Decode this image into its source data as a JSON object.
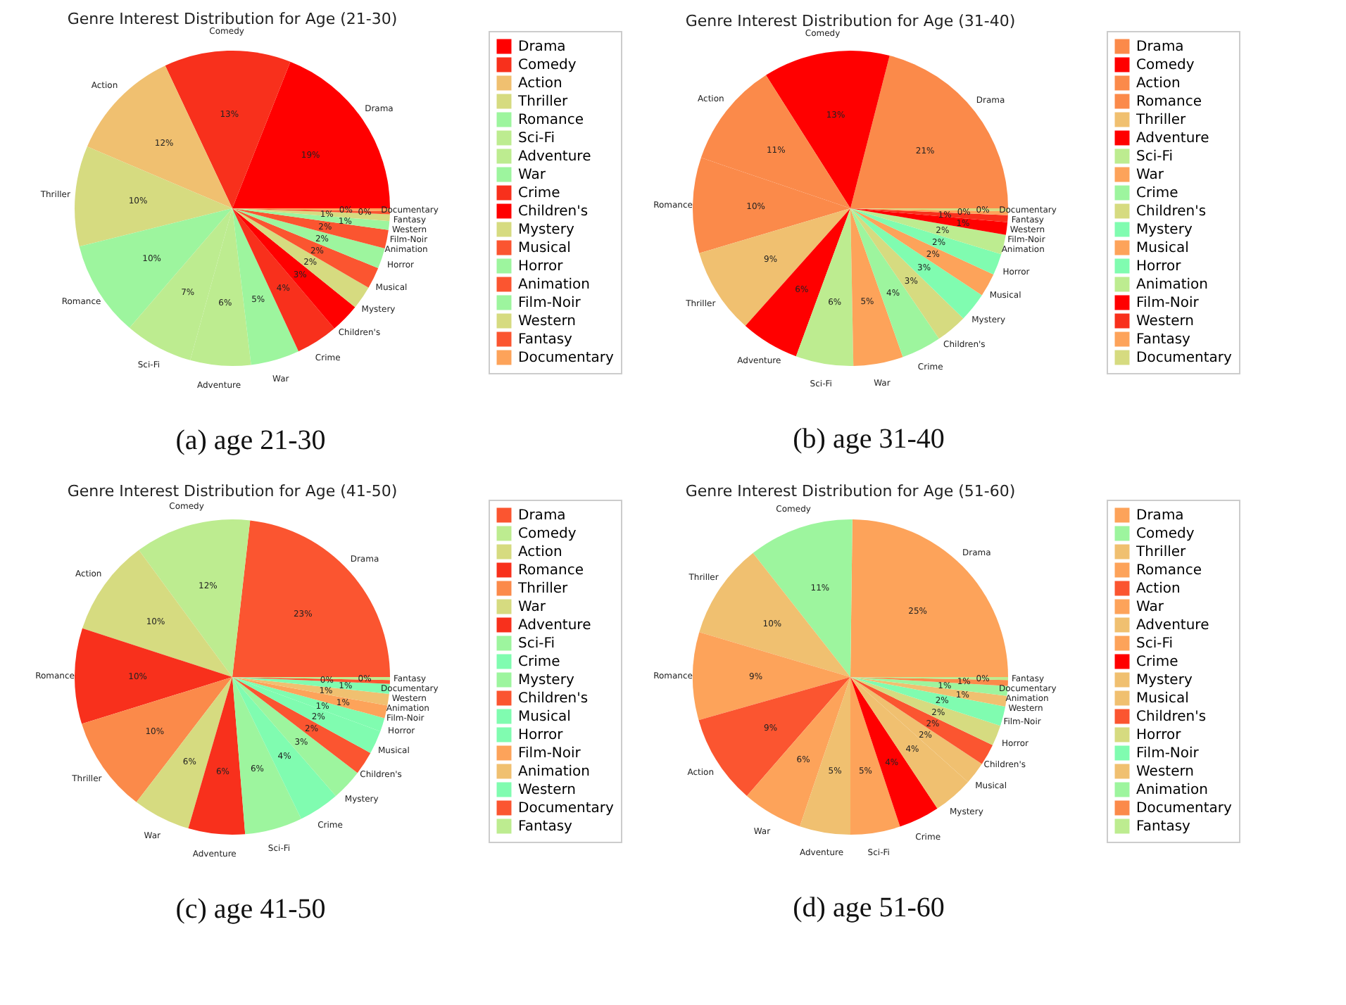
{
  "chart_data": [
    {
      "type": "pie",
      "title": "Genre Interest Distribution for Age (21-30)",
      "legend": "right",
      "annotations": [
        "(a) age 21-30"
      ],
      "categories": [
        "Drama",
        "Comedy",
        "Action",
        "Thriller",
        "Romance",
        "Sci-Fi",
        "Adventure",
        "War",
        "Crime",
        "Children's",
        "Mystery",
        "Musical",
        "Horror",
        "Animation",
        "Film-Noir",
        "Western",
        "Fantasy",
        "Documentary"
      ],
      "values": [
        19.0,
        13.0,
        11.6,
        10.3,
        9.8,
        7.0,
        6.2,
        5.0,
        4.3,
        3.0,
        2.4,
        2.2,
        2.1,
        1.9,
        0.9,
        0.7,
        0.3,
        0.3
      ],
      "value_labels": [
        "19%",
        "13%",
        "12%",
        "10%",
        "10%",
        "7%",
        "6%",
        "5%",
        "4%",
        "3%",
        "2%",
        "2%",
        "2%",
        "2%",
        "1%",
        "1%",
        "0%",
        "0%"
      ],
      "colors": [
        "#ff0000",
        "#f8301c",
        "#f0c070",
        "#d6db80",
        "#9df59e",
        "#bdec90",
        "#bdec90",
        "#9df59e",
        "#f8301c",
        "#ff0000",
        "#d6db80",
        "#fb5530",
        "#9df59e",
        "#fb5530",
        "#9df59e",
        "#d6db80",
        "#fb5530",
        "#fda35a"
      ]
    },
    {
      "type": "pie",
      "title": "Genre Interest Distribution for Age (31-40)",
      "legend": "right",
      "annotations": [
        "(b) age 31-40"
      ],
      "categories": [
        "Drama",
        "Comedy",
        "Action",
        "Romance",
        "Thriller",
        "Adventure",
        "Sci-Fi",
        "War",
        "Crime",
        "Children's",
        "Mystery",
        "Musical",
        "Horror",
        "Animation",
        "Film-Noir",
        "Western",
        "Fantasy",
        "Documentary"
      ],
      "values": [
        21.0,
        13.0,
        10.8,
        9.8,
        8.8,
        6.0,
        5.9,
        5.1,
        4.1,
        3.2,
        3.0,
        2.4,
        2.2,
        2.0,
        1.3,
        0.7,
        0.4,
        0.3
      ],
      "value_labels": [
        "21%",
        "13%",
        "11%",
        "10%",
        "9%",
        "6%",
        "6%",
        "5%",
        "4%",
        "3%",
        "3%",
        "2%",
        "2%",
        "2%",
        "1%",
        "1%",
        "0%",
        "0%"
      ],
      "colors": [
        "#fb8a4a",
        "#ff0000",
        "#fb8a4a",
        "#fb8a4a",
        "#f0c070",
        "#ff0000",
        "#bdec90",
        "#fda35a",
        "#9df59e",
        "#d6db80",
        "#80fcb0",
        "#fda35a",
        "#80fcb0",
        "#bdec90",
        "#ff0000",
        "#f8301c",
        "#fda35a",
        "#d6db80"
      ]
    },
    {
      "type": "pie",
      "title": "Genre Interest Distribution for Age (41-50)",
      "legend": "right",
      "annotations": [
        "(c) age 41-50"
      ],
      "categories": [
        "Drama",
        "Comedy",
        "Action",
        "Romance",
        "Thriller",
        "War",
        "Adventure",
        "Sci-Fi",
        "Crime",
        "Mystery",
        "Children's",
        "Musical",
        "Horror",
        "Film-Noir",
        "Animation",
        "Western",
        "Documentary",
        "Fantasy"
      ],
      "values": [
        23.2,
        11.9,
        9.9,
        9.8,
        9.8,
        5.9,
        5.8,
        5.9,
        4.2,
        3.2,
        2.4,
        2.4,
        1.4,
        1.3,
        1.2,
        1.0,
        0.4,
        0.3
      ],
      "value_labels": [
        "23%",
        "12%",
        "10%",
        "10%",
        "10%",
        "6%",
        "6%",
        "6%",
        "4%",
        "3%",
        "2%",
        "2%",
        "1%",
        "1%",
        "1%",
        "1%",
        "0%",
        "0%"
      ],
      "colors": [
        "#fb5530",
        "#bdec90",
        "#d6db80",
        "#f8301c",
        "#fb8a4a",
        "#d6db80",
        "#f8301c",
        "#9df59e",
        "#80fcb0",
        "#9df59e",
        "#fb5530",
        "#80fcb0",
        "#80fcb0",
        "#fda35a",
        "#f0c070",
        "#80fcb0",
        "#fb5530",
        "#bdec90"
      ]
    },
    {
      "type": "pie",
      "title": "Genre Interest Distribution for Age (51-60)",
      "legend": "right",
      "annotations": [
        "(d) age 51-60"
      ],
      "categories": [
        "Drama",
        "Comedy",
        "Thriller",
        "Romance",
        "Action",
        "War",
        "Adventure",
        "Sci-Fi",
        "Crime",
        "Mystery",
        "Musical",
        "Children's",
        "Horror",
        "Film-Noir",
        "Western",
        "Animation",
        "Documentary",
        "Fantasy"
      ],
      "values": [
        24.8,
        10.8,
        9.8,
        9.0,
        9.2,
        6.2,
        5.2,
        5.1,
        4.2,
        4.1,
        2.3,
        2.2,
        2.1,
        2.0,
        1.1,
        1.0,
        0.6,
        0.3
      ],
      "value_labels": [
        "25%",
        "11%",
        "10%",
        "9%",
        "9%",
        "6%",
        "5%",
        "5%",
        "4%",
        "4%",
        "2%",
        "2%",
        "2%",
        "2%",
        "1%",
        "1%",
        "1%",
        "0%"
      ],
      "colors": [
        "#fda35a",
        "#9df59e",
        "#f0c070",
        "#fda35a",
        "#fb5530",
        "#fda35a",
        "#f0c070",
        "#fda35a",
        "#ff0000",
        "#f0c070",
        "#f0c070",
        "#fb5530",
        "#d6db80",
        "#80fcb0",
        "#f0c070",
        "#9df59e",
        "#fb8a4a",
        "#bdec90"
      ]
    }
  ]
}
